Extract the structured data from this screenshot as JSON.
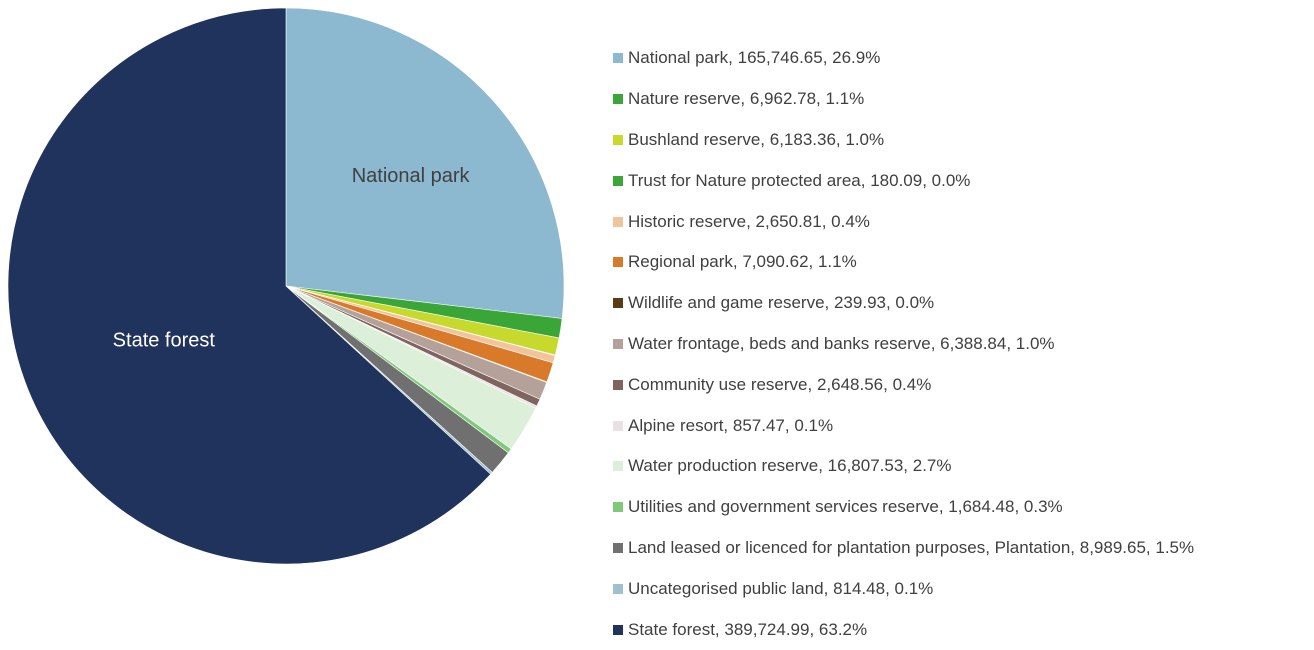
{
  "chart_data": {
    "type": "pie",
    "title": "",
    "slice_labels": [
      "National park",
      "State forest"
    ],
    "series": [
      {
        "name": "National park",
        "value": 165746.65,
        "percent": "26.9%",
        "color": "#8cb9cf",
        "legend_text": "National park, 165,746.65, 26.9%"
      },
      {
        "name": "Nature reserve",
        "value": 6962.78,
        "percent": "1.1%",
        "color": "#3aa637",
        "legend_text": "Nature reserve, 6,962.78, 1.1%"
      },
      {
        "name": "Bushland reserve",
        "value": 6183.36,
        "percent": "1.0%",
        "color": "#c8d92e",
        "legend_text": "Bushland reserve, 6,183.36, 1.0%"
      },
      {
        "name": "Trust for Nature protected area",
        "value": 180.09,
        "percent": "0.0%",
        "color": "#3aa637",
        "legend_text": "Trust for Nature protected area, 180.09, 0.0%"
      },
      {
        "name": "Historic reserve",
        "value": 2650.81,
        "percent": "0.4%",
        "color": "#f1c49c",
        "legend_text": "Historic reserve, 2,650.81, 0.4%"
      },
      {
        "name": "Regional park",
        "value": 7090.62,
        "percent": "1.1%",
        "color": "#d97a2b",
        "legend_text": "Regional park, 7,090.62, 1.1%"
      },
      {
        "name": "Wildlife and game reserve",
        "value": 239.93,
        "percent": "0.0%",
        "color": "#5b3a14",
        "legend_text": "Wildlife and game reserve, 239.93, 0.0%"
      },
      {
        "name": "Water frontage, beds and banks reserve",
        "value": 6388.84,
        "percent": "1.0%",
        "color": "#b3a19a",
        "legend_text": "Water frontage, beds and banks reserve, 6,388.84, 1.0%"
      },
      {
        "name": "Community use reserve",
        "value": 2648.56,
        "percent": "0.4%",
        "color": "#806460",
        "legend_text": "Community use reserve, 2,648.56, 0.4%"
      },
      {
        "name": "Alpine resort",
        "value": 857.47,
        "percent": "0.1%",
        "color": "#e8e0e3",
        "legend_text": "Alpine resort, 857.47, 0.1%"
      },
      {
        "name": "Water production reserve",
        "value": 16807.53,
        "percent": "2.7%",
        "color": "#dcefd9",
        "legend_text": "Water production reserve, 16,807.53, 2.7%"
      },
      {
        "name": "Utilities and government services reserve",
        "value": 1684.48,
        "percent": "0.3%",
        "color": "#7fc97a",
        "legend_text": "Utilities and government services reserve, 1,684.48, 0.3%"
      },
      {
        "name": "Land leased or licenced for plantation purposes, Plantation",
        "value": 8989.65,
        "percent": "1.5%",
        "color": "#707070",
        "legend_text": "Land leased or licenced for plantation purposes, Plantation, 8,989.65, 1.5%"
      },
      {
        "name": "Uncategorised public land",
        "value": 814.48,
        "percent": "0.1%",
        "color": "#9fc0cf",
        "legend_text": "Uncategorised public land, 814.48, 0.1%"
      },
      {
        "name": "State forest",
        "value": 389724.99,
        "percent": "63.2%",
        "color": "#20335c",
        "legend_text": "State forest, 389,724.99, 63.2%"
      }
    ],
    "legend_position": "right",
    "start_angle": "12 o'clock, clockwise"
  },
  "label_colors": {
    "National park": "#404040",
    "State forest": "#ffffff"
  }
}
